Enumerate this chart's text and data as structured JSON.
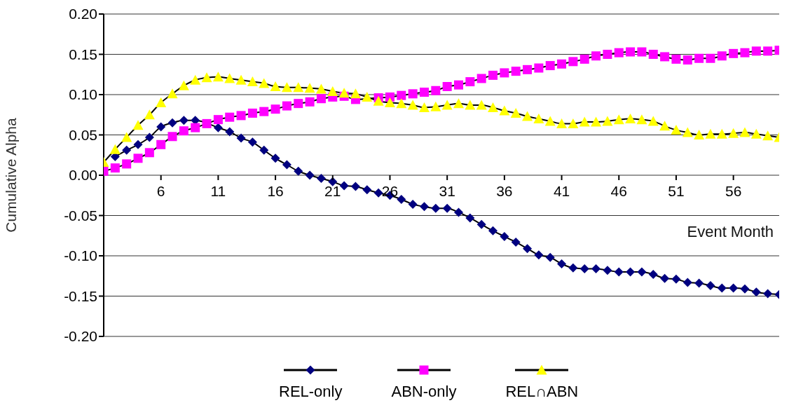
{
  "chart_data": {
    "type": "line",
    "ylabel": "Cumulative Alpha",
    "xlabel": "Event Month",
    "x": [
      1,
      2,
      3,
      4,
      5,
      6,
      7,
      8,
      9,
      10,
      11,
      12,
      13,
      14,
      15,
      16,
      17,
      18,
      19,
      20,
      21,
      22,
      23,
      24,
      25,
      26,
      27,
      28,
      29,
      30,
      31,
      32,
      33,
      34,
      35,
      36,
      37,
      38,
      39,
      40,
      41,
      42,
      43,
      44,
      45,
      46,
      47,
      48,
      49,
      50,
      51,
      52,
      53,
      54,
      55,
      56,
      57,
      58,
      59,
      60
    ],
    "xlim": [
      1,
      60
    ],
    "xticks": [
      6,
      11,
      16,
      21,
      26,
      31,
      36,
      41,
      46,
      51,
      56
    ],
    "ylim": [
      -0.2,
      0.2
    ],
    "yticks": [
      {
        "value": -0.2,
        "label": "-0.20"
      },
      {
        "value": -0.15,
        "label": "-0.15"
      },
      {
        "value": -0.1,
        "label": "-0.10"
      },
      {
        "value": -0.05,
        "label": "-0.05"
      },
      {
        "value": 0,
        "label": "0.00"
      },
      {
        "value": 0.05,
        "label": "0.05"
      },
      {
        "value": 0.1,
        "label": "0.10"
      },
      {
        "value": 0.15,
        "label": "0.15"
      },
      {
        "value": 0.2,
        "label": "0.20"
      }
    ],
    "grid": "y",
    "legend": "bottom",
    "series": [
      {
        "name": "REL-only",
        "color": "#000080",
        "marker": "diamond",
        "values": [
          null,
          0.023,
          0.031,
          0.038,
          0.047,
          0.06,
          0.065,
          0.068,
          0.068,
          null,
          0.059,
          0.054,
          0.046,
          0.041,
          0.031,
          0.021,
          0.013,
          0.005,
          0.0,
          -0.004,
          -0.008,
          -0.013,
          -0.014,
          -0.018,
          -0.022,
          -0.025,
          -0.03,
          -0.036,
          -0.039,
          -0.041,
          -0.041,
          -0.046,
          -0.053,
          -0.061,
          -0.069,
          -0.076,
          -0.083,
          -0.091,
          -0.099,
          -0.102,
          -0.11,
          -0.115,
          -0.116,
          -0.116,
          -0.118,
          -0.12,
          -0.12,
          -0.12,
          -0.123,
          -0.128,
          -0.129,
          -0.133,
          -0.134,
          -0.137,
          -0.14,
          -0.14,
          -0.141,
          -0.145,
          -0.147,
          -0.148
        ]
      },
      {
        "name": "ABN-only",
        "color": "#ff00ff",
        "marker": "square",
        "values": [
          0.005,
          0.009,
          0.014,
          0.021,
          0.028,
          0.038,
          0.048,
          0.055,
          0.059,
          0.064,
          0.069,
          0.072,
          0.074,
          0.077,
          0.079,
          0.082,
          0.086,
          0.089,
          0.091,
          0.095,
          0.097,
          0.098,
          0.094,
          null,
          0.096,
          0.097,
          0.099,
          0.101,
          0.103,
          0.105,
          0.11,
          0.112,
          0.116,
          0.12,
          0.124,
          0.127,
          0.129,
          0.131,
          0.133,
          0.136,
          0.138,
          0.141,
          0.144,
          0.148,
          0.15,
          0.152,
          0.153,
          0.153,
          0.15,
          0.147,
          0.144,
          0.143,
          0.145,
          0.145,
          0.148,
          0.151,
          0.152,
          0.154,
          0.154,
          0.155
        ]
      },
      {
        "name": "REL∩ABN",
        "color": "#ffff00",
        "marker": "triangle",
        "values": [
          0.016,
          0.032,
          0.047,
          0.062,
          0.075,
          0.09,
          0.101,
          0.111,
          0.118,
          0.121,
          0.122,
          0.12,
          0.118,
          0.116,
          0.114,
          0.11,
          0.109,
          0.109,
          0.108,
          0.107,
          0.104,
          0.102,
          0.101,
          0.097,
          0.092,
          0.09,
          0.089,
          0.087,
          0.084,
          0.085,
          0.087,
          0.089,
          0.087,
          0.087,
          0.084,
          0.08,
          0.077,
          0.073,
          0.07,
          0.067,
          0.064,
          0.064,
          0.066,
          0.066,
          0.067,
          0.069,
          0.07,
          0.069,
          0.067,
          0.061,
          0.056,
          0.053,
          0.05,
          0.051,
          0.051,
          0.052,
          0.053,
          0.051,
          0.049,
          0.047
        ]
      }
    ]
  }
}
